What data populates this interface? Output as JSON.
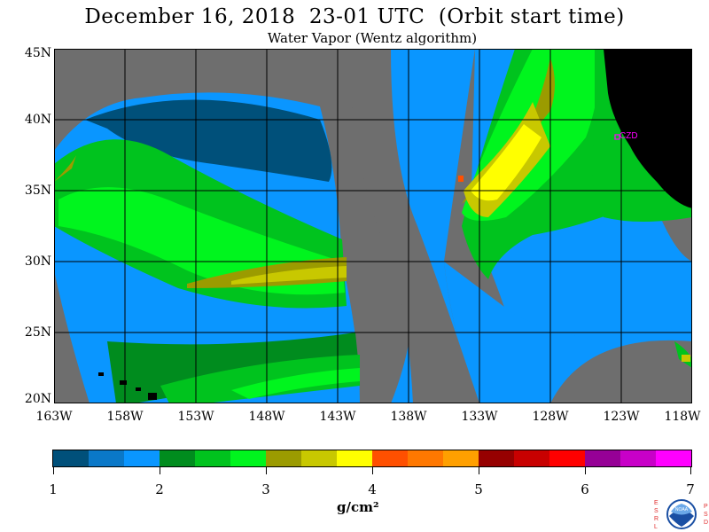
{
  "title": "December 16, 2018  23-01 UTC  (Orbit start time)",
  "subtitle": "Water Vapor (Wentz algorithm)",
  "map": {
    "lat_labels": [
      "45N",
      "40N",
      "35N",
      "30N",
      "25N",
      "20N"
    ],
    "lon_labels": [
      "163W",
      "158W",
      "153W",
      "148W",
      "143W",
      "138W",
      "133W",
      "128W",
      "123W",
      "118W"
    ],
    "station_label": "CZD",
    "colors": {
      "no_data": "#6e6e6e",
      "land": "#000000",
      "station": "#ff00ff"
    }
  },
  "colorbar": {
    "colors": [
      "#00507a",
      "#0a78c8",
      "#0a96ff",
      "#008c1e",
      "#00c31e",
      "#00f51e",
      "#9b9b00",
      "#c8c800",
      "#ffff00",
      "#ff5000",
      "#ff7800",
      "#ffa000",
      "#960000",
      "#c80000",
      "#ff0000",
      "#960096",
      "#c800c8",
      "#ff00ff"
    ],
    "tick_labels": [
      "1",
      "2",
      "3",
      "4",
      "5",
      "6",
      "7"
    ],
    "range": [
      1,
      7
    ],
    "units": "g/cm²"
  },
  "logo": {
    "left_letters": "ESRL",
    "right_letters": "PSD",
    "center_text": "NOAA"
  }
}
